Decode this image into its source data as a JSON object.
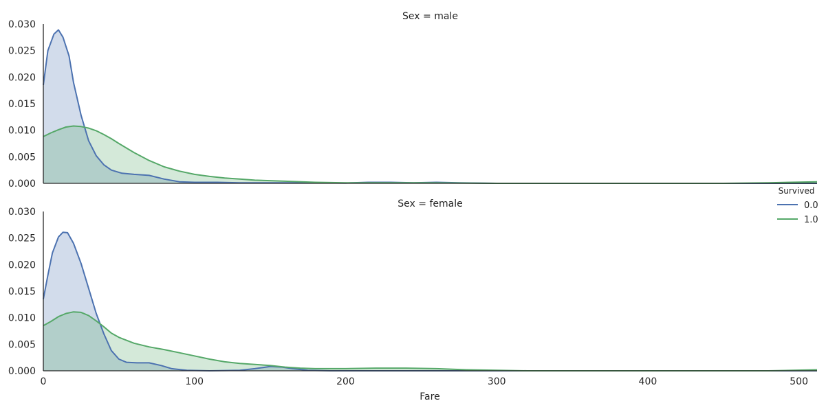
{
  "chart_data": {
    "type": "area",
    "xlabel": "Fare",
    "xlim": [
      0,
      512
    ],
    "x_ticks": [
      "0",
      "100",
      "200",
      "300",
      "400",
      "500"
    ],
    "x_tick_values": [
      0,
      100,
      200,
      300,
      400,
      500
    ],
    "ylim": [
      0,
      0.03
    ],
    "y_ticks": [
      "0.000",
      "0.005",
      "0.010",
      "0.015",
      "0.020",
      "0.025",
      "0.030"
    ],
    "y_tick_values": [
      0,
      0.005,
      0.01,
      0.015,
      0.02,
      0.025,
      0.03
    ],
    "legend": {
      "title": "Survived",
      "placement": "right",
      "entries": [
        {
          "label": "0.0",
          "color": "#4c72b0"
        },
        {
          "label": "1.0",
          "color": "#55a868"
        }
      ]
    },
    "panels": [
      {
        "title": "Sex = male",
        "series": [
          {
            "name": "0.0",
            "color": "#4c72b0",
            "points": [
              [
                0,
                0.0185
              ],
              [
                3,
                0.025
              ],
              [
                7,
                0.0281
              ],
              [
                10,
                0.0289
              ],
              [
                13,
                0.0275
              ],
              [
                17,
                0.024
              ],
              [
                20,
                0.019
              ],
              [
                25,
                0.0128
              ],
              [
                30,
                0.008
              ],
              [
                35,
                0.0052
              ],
              [
                40,
                0.0035
              ],
              [
                45,
                0.0025
              ],
              [
                52,
                0.0019
              ],
              [
                60,
                0.0017
              ],
              [
                70,
                0.0015
              ],
              [
                80,
                0.0008
              ],
              [
                90,
                0.0003
              ],
              [
                100,
                0.0002
              ],
              [
                115,
                0.0002
              ],
              [
                130,
                0.0001
              ],
              [
                150,
                0.0001
              ],
              [
                180,
                0.0001
              ],
              [
                200,
                5e-05
              ],
              [
                215,
                0.0002
              ],
              [
                230,
                0.0002
              ],
              [
                245,
                0.0001
              ],
              [
                260,
                0.0002
              ],
              [
                275,
                0.0001
              ],
              [
                300,
                0.0
              ],
              [
                350,
                0.0
              ],
              [
                400,
                0.0
              ],
              [
                450,
                0.0
              ],
              [
                512,
                0.0
              ]
            ]
          },
          {
            "name": "1.0",
            "color": "#55a868",
            "points": [
              [
                0,
                0.0088
              ],
              [
                5,
                0.0095
              ],
              [
                10,
                0.0101
              ],
              [
                15,
                0.0106
              ],
              [
                20,
                0.0108
              ],
              [
                25,
                0.0107
              ],
              [
                30,
                0.0104
              ],
              [
                35,
                0.0099
              ],
              [
                40,
                0.0092
              ],
              [
                45,
                0.0084
              ],
              [
                50,
                0.0075
              ],
              [
                60,
                0.0058
              ],
              [
                70,
                0.0043
              ],
              [
                80,
                0.0031
              ],
              [
                90,
                0.0023
              ],
              [
                100,
                0.0017
              ],
              [
                110,
                0.0013
              ],
              [
                120,
                0.001
              ],
              [
                130,
                0.0008
              ],
              [
                140,
                0.0006
              ],
              [
                160,
                0.0004
              ],
              [
                180,
                0.0002
              ],
              [
                200,
                0.0001
              ],
              [
                250,
                0.0001
              ],
              [
                300,
                0.0
              ],
              [
                350,
                0.0
              ],
              [
                400,
                0.0
              ],
              [
                450,
                0.0
              ],
              [
                480,
                0.0001
              ],
              [
                512,
                0.0003
              ]
            ]
          }
        ]
      },
      {
        "title": "Sex = female",
        "series": [
          {
            "name": "0.0",
            "color": "#4c72b0",
            "points": [
              [
                0,
                0.0135
              ],
              [
                3,
                0.018
              ],
              [
                6,
                0.0222
              ],
              [
                10,
                0.0252
              ],
              [
                13,
                0.0261
              ],
              [
                16,
                0.026
              ],
              [
                20,
                0.024
              ],
              [
                25,
                0.0202
              ],
              [
                30,
                0.0155
              ],
              [
                35,
                0.0108
              ],
              [
                40,
                0.007
              ],
              [
                45,
                0.0038
              ],
              [
                50,
                0.0022
              ],
              [
                55,
                0.0016
              ],
              [
                62,
                0.0015
              ],
              [
                70,
                0.0015
              ],
              [
                78,
                0.001
              ],
              [
                85,
                0.0004
              ],
              [
                95,
                0.0001
              ],
              [
                110,
                0.0
              ],
              [
                130,
                0.0001
              ],
              [
                140,
                0.0004
              ],
              [
                150,
                0.0008
              ],
              [
                158,
                0.0007
              ],
              [
                165,
                0.0004
              ],
              [
                175,
                0.0001
              ],
              [
                190,
                0.0
              ],
              [
                250,
                0.0
              ],
              [
                300,
                0.0
              ],
              [
                400,
                0.0
              ],
              [
                512,
                0.0
              ]
            ]
          },
          {
            "name": "1.0",
            "color": "#55a868",
            "points": [
              [
                0,
                0.0085
              ],
              [
                5,
                0.0093
              ],
              [
                10,
                0.0102
              ],
              [
                15,
                0.0108
              ],
              [
                20,
                0.0111
              ],
              [
                25,
                0.011
              ],
              [
                30,
                0.0104
              ],
              [
                35,
                0.0094
              ],
              [
                40,
                0.0083
              ],
              [
                45,
                0.0071
              ],
              [
                50,
                0.0063
              ],
              [
                60,
                0.0052
              ],
              [
                70,
                0.0045
              ],
              [
                80,
                0.004
              ],
              [
                90,
                0.0034
              ],
              [
                100,
                0.0028
              ],
              [
                110,
                0.0022
              ],
              [
                120,
                0.0017
              ],
              [
                130,
                0.0014
              ],
              [
                140,
                0.0012
              ],
              [
                150,
                0.001
              ],
              [
                160,
                0.0007
              ],
              [
                170,
                0.0005
              ],
              [
                180,
                0.0004
              ],
              [
                200,
                0.0004
              ],
              [
                220,
                0.0005
              ],
              [
                240,
                0.0005
              ],
              [
                260,
                0.0004
              ],
              [
                280,
                0.0002
              ],
              [
                300,
                0.0001
              ],
              [
                320,
                0.0
              ],
              [
                400,
                0.0
              ],
              [
                480,
                0.0
              ],
              [
                512,
                0.0002
              ]
            ]
          }
        ]
      }
    ]
  }
}
